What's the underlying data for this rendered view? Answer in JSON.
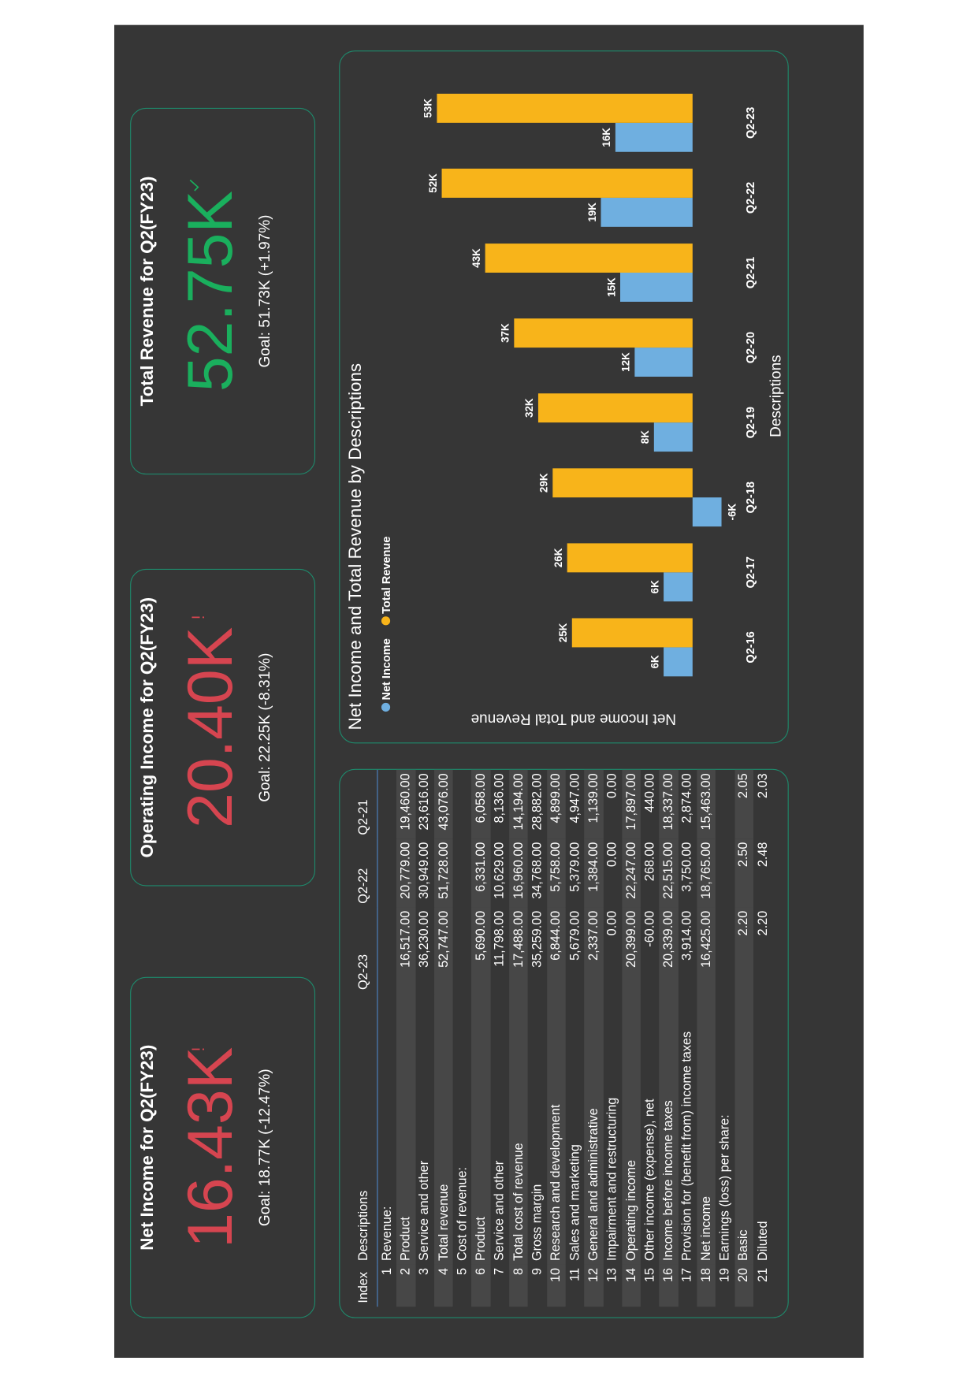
{
  "cards": [
    {
      "title": "Net Income for Q2(FY23)",
      "value": "16.43K",
      "goal": "Goal: 18.77K (-12.47%)",
      "status": "below"
    },
    {
      "title": "Operating Income for Q2(FY23)",
      "value": "20.40K",
      "goal": "Goal: 22.25K (-8.31%)",
      "status": "below"
    },
    {
      "title": "Total Revenue for Q2(FY23)",
      "value": "52.75K",
      "goal": "Goal: 51.73K (+1.97%)",
      "status": "above"
    }
  ],
  "table": {
    "header": [
      "Index",
      "Descriptions",
      "Q2-23",
      "Q2-22",
      "Q2-21"
    ],
    "rows": [
      [
        "1",
        "Revenue:"
      ],
      [
        "2",
        "Product",
        "16,517.00",
        "20,779.00",
        "19,460.00"
      ],
      [
        "3",
        "Service and other",
        "36,230.00",
        "30,949.00",
        "23,616.00"
      ],
      [
        "4",
        "Total revenue",
        "52,747.00",
        "51,728.00",
        "43,076.00"
      ],
      [
        "5",
        "Cost of revenue:"
      ],
      [
        "6",
        "Product",
        "5,690.00",
        "6,331.00",
        "6,058.00"
      ],
      [
        "7",
        "Service and other",
        "11,798.00",
        "10,629.00",
        "8,136.00"
      ],
      [
        "8",
        "Total cost of revenue",
        "17,488.00",
        "16,960.00",
        "14,194.00"
      ],
      [
        "9",
        "Gross margin",
        "35,259.00",
        "34,768.00",
        "28,882.00"
      ],
      [
        "10",
        "Research and development",
        "6,844.00",
        "5,758.00",
        "4,899.00"
      ],
      [
        "11",
        "Sales and marketing",
        "5,679.00",
        "5,379.00",
        "4,947.00"
      ],
      [
        "12",
        "General and administrative",
        "2,337.00",
        "1,384.00",
        "1,139.00"
      ],
      [
        "13",
        "Impairment and restructuring",
        "0.00",
        "0.00",
        "0.00"
      ],
      [
        "14",
        "Operating income",
        "20,399.00",
        "22,247.00",
        "17,897.00"
      ],
      [
        "15",
        "Other income (expense), net",
        "-60.00",
        "268.00",
        "440.00"
      ],
      [
        "16",
        "Income before income taxes",
        "20,339.00",
        "22,515.00",
        "18,337.00"
      ],
      [
        "17",
        "Provision for (benefit from) income taxes",
        "3,914.00",
        "3,750.00",
        "2,874.00"
      ],
      [
        "18",
        "Net income",
        "16,425.00",
        "18,765.00",
        "15,463.00"
      ],
      [
        "19",
        "Earnings (loss) per share:"
      ],
      [
        "20",
        "Basic",
        "2.20",
        "2.50",
        "2.05"
      ],
      [
        "21",
        "Diluted",
        "2.20",
        "2.48",
        "2.03"
      ]
    ]
  },
  "chart_data": {
    "type": "bar",
    "title": "Net Income and Total Revenue by Descriptions",
    "x_label": "Descriptions",
    "y_label": "Net Income and Total Revenue",
    "legend": "top-left",
    "categories": [
      "Q2-16",
      "Q2-17",
      "Q2-18",
      "Q2-19",
      "Q2-20",
      "Q2-21",
      "Q2-22",
      "Q2-23"
    ],
    "series": [
      {
        "name": "Net Income",
        "color": "#6fafe0",
        "values": [
          6,
          6,
          -6,
          8,
          12,
          15,
          19,
          16
        ],
        "value_labels": [
          "6K",
          "6K",
          "-6K",
          "8K",
          "12K",
          "15K",
          "19K",
          "16K"
        ]
      },
      {
        "name": "Total Revenue",
        "color": "#f8b41a",
        "values": [
          25,
          26,
          29,
          32,
          37,
          43,
          52,
          53
        ],
        "value_labels": [
          "25K",
          "26K",
          "29K",
          "32K",
          "37K",
          "43K",
          "52K",
          "53K"
        ]
      }
    ]
  }
}
